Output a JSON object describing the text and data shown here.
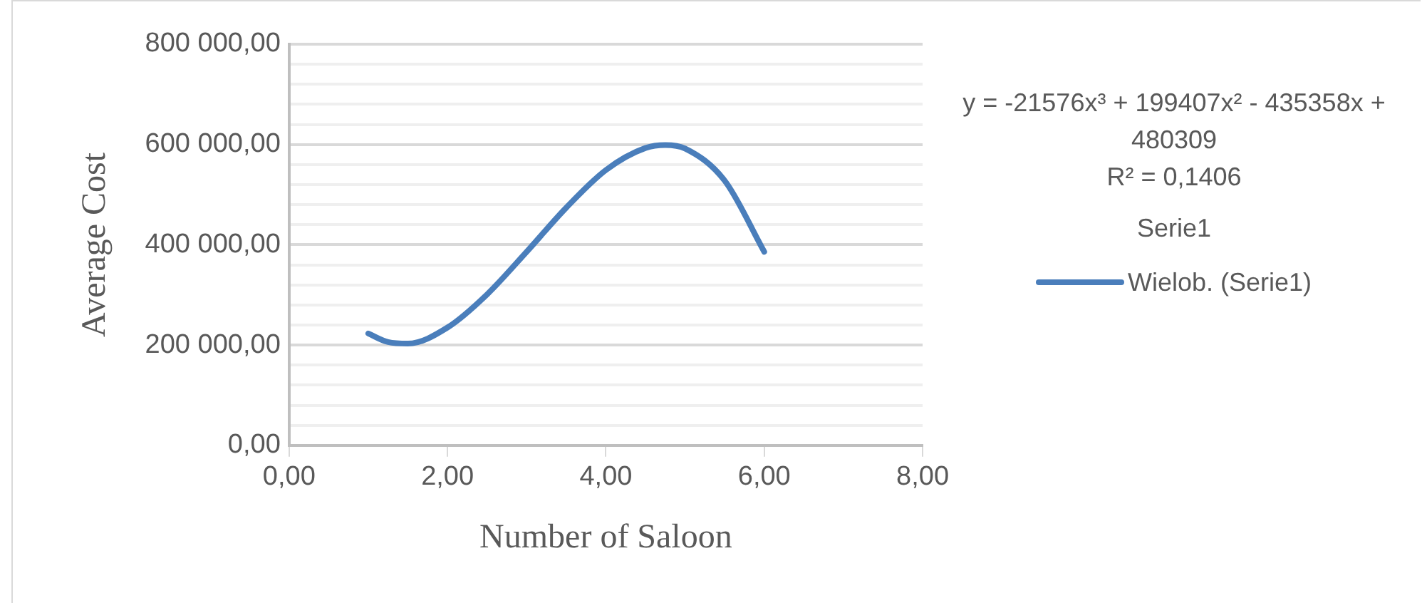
{
  "chart_data": {
    "type": "line",
    "xlabel": "Number of Saloon",
    "ylabel": "Average Cost",
    "series": [
      {
        "name": "Wielob. (Serie1)",
        "color": "#4a7ebb",
        "x": [
          1,
          1.25,
          1.5,
          2,
          2.5,
          3,
          3.5,
          4,
          4.5,
          4.75,
          5,
          5.5,
          6
        ],
        "values": [
          223000,
          206000,
          203000,
          235000,
          301000,
          386000,
          474000,
          549000,
          593000,
          599000,
          592000,
          528000,
          386000
        ]
      }
    ],
    "xlim": [
      0,
      8
    ],
    "xticks": [
      {
        "value": 0,
        "label": "0,00"
      },
      {
        "value": 2,
        "label": "2,00"
      },
      {
        "value": 4,
        "label": "4,00"
      },
      {
        "value": 6,
        "label": "6,00"
      },
      {
        "value": 8,
        "label": "8,00"
      }
    ],
    "ylim": [
      0,
      800000
    ],
    "yticks": [
      {
        "value": 0,
        "label": "0,00"
      },
      {
        "value": 40000,
        "label": null
      },
      {
        "value": 80000,
        "label": null
      },
      {
        "value": 120000,
        "label": null
      },
      {
        "value": 160000,
        "label": null
      },
      {
        "value": 200000,
        "label": "200 000,00"
      },
      {
        "value": 240000,
        "label": null
      },
      {
        "value": 280000,
        "label": null
      },
      {
        "value": 320000,
        "label": null
      },
      {
        "value": 360000,
        "label": null
      },
      {
        "value": 400000,
        "label": "400 000,00"
      },
      {
        "value": 440000,
        "label": null
      },
      {
        "value": 480000,
        "label": null
      },
      {
        "value": 520000,
        "label": null
      },
      {
        "value": 560000,
        "label": null
      },
      {
        "value": 600000,
        "label": "600 000,00"
      },
      {
        "value": 640000,
        "label": null
      },
      {
        "value": 680000,
        "label": null
      },
      {
        "value": 720000,
        "label": null
      },
      {
        "value": 760000,
        "label": null
      },
      {
        "value": 800000,
        "label": "800 000,00"
      }
    ],
    "grid": "y",
    "legend": "right",
    "marker": "none",
    "line_style": "solid",
    "annotations": [
      "y = -21576x³ + 199407x² - 435358x + 480309",
      "R² = 0,1406",
      "Serie1"
    ]
  }
}
